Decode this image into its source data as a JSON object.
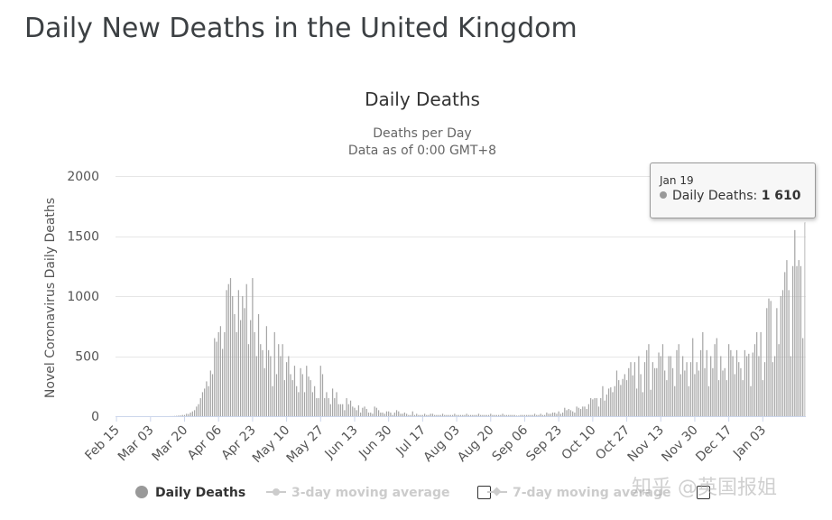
{
  "page": {
    "title": "Daily New Deaths in the United Kingdom"
  },
  "watermark": "知乎 @英国报姐",
  "colors": {
    "bar": "#a6a6a6",
    "grid": "#e6e6e6",
    "axis": "#ccd6eb"
  },
  "tooltip": {
    "date": "Jan 19",
    "series": "Daily Deaths",
    "value": "1 610"
  },
  "legend": {
    "items": [
      {
        "label": "Daily Deaths",
        "active": true
      },
      {
        "label": "3-day moving average",
        "active": false
      },
      {
        "label": "7-day moving average",
        "active": false
      }
    ]
  },
  "chart_data": {
    "type": "bar",
    "title": "Daily Deaths",
    "subtitle_line1": "Deaths per Day",
    "subtitle_line2": "Data as of 0:00 GMT+8",
    "ylabel": "Novel Coronavirus Daily Deaths",
    "xlabel": "",
    "ylim": [
      0,
      2000
    ],
    "yticks": [
      0,
      500,
      1000,
      1500,
      2000
    ],
    "x_start": "Feb 15",
    "x_end": "Jan 19",
    "xtick_labels": [
      "Feb 15",
      "Mar 03",
      "Mar 20",
      "Apr 06",
      "Apr 23",
      "May 10",
      "May 27",
      "Jun 13",
      "Jun 30",
      "Jul 17",
      "Aug 03",
      "Aug 20",
      "Sep 06",
      "Sep 23",
      "Oct 10",
      "Oct 27",
      "Nov 13",
      "Nov 30",
      "Dec 17",
      "Jan 03"
    ],
    "xtick_day_index": [
      0,
      17,
      34,
      51,
      68,
      85,
      102,
      119,
      136,
      153,
      170,
      187,
      204,
      221,
      238,
      255,
      272,
      289,
      306,
      323
    ],
    "series": [
      {
        "name": "Daily Deaths",
        "values": [
          0,
          0,
          0,
          0,
          0,
          0,
          0,
          0,
          0,
          0,
          0,
          0,
          0,
          0,
          0,
          0,
          0,
          0,
          0,
          0,
          0,
          0,
          0,
          0,
          0,
          0,
          0,
          1,
          1,
          2,
          3,
          5,
          6,
          10,
          10,
          20,
          18,
          30,
          40,
          50,
          80,
          100,
          150,
          200,
          230,
          290,
          250,
          380,
          350,
          650,
          620,
          700,
          750,
          560,
          700,
          1050,
          1100,
          1150,
          1000,
          850,
          700,
          1050,
          800,
          1000,
          900,
          1100,
          600,
          800,
          1150,
          700,
          500,
          850,
          600,
          550,
          400,
          750,
          550,
          500,
          250,
          700,
          350,
          600,
          500,
          600,
          300,
          450,
          500,
          350,
          300,
          420,
          250,
          200,
          400,
          350,
          200,
          420,
          330,
          300,
          200,
          250,
          150,
          150,
          420,
          350,
          150,
          200,
          150,
          100,
          230,
          150,
          200,
          100,
          100,
          100,
          50,
          150,
          100,
          130,
          80,
          70,
          50,
          90,
          30,
          70,
          80,
          60,
          30,
          30,
          20,
          80,
          70,
          50,
          30,
          30,
          20,
          40,
          40,
          30,
          10,
          30,
          50,
          40,
          20,
          20,
          30,
          20,
          10,
          10,
          40,
          10,
          20,
          10,
          10,
          10,
          20,
          10,
          10,
          20,
          20,
          10,
          10,
          10,
          10,
          20,
          10,
          10,
          10,
          10,
          10,
          20,
          10,
          10,
          10,
          10,
          10,
          20,
          10,
          10,
          10,
          10,
          10,
          20,
          10,
          10,
          10,
          10,
          10,
          20,
          10,
          10,
          10,
          10,
          10,
          20,
          10,
          10,
          10,
          10,
          10,
          10,
          5,
          5,
          10,
          10,
          10,
          10,
          10,
          10,
          10,
          20,
          10,
          10,
          20,
          10,
          10,
          30,
          20,
          20,
          30,
          30,
          20,
          40,
          20,
          30,
          70,
          50,
          60,
          50,
          40,
          30,
          80,
          70,
          60,
          80,
          80,
          60,
          100,
          150,
          140,
          150,
          150,
          80,
          150,
          250,
          130,
          180,
          230,
          240,
          200,
          250,
          380,
          300,
          260,
          310,
          350,
          300,
          400,
          450,
          340,
          450,
          230,
          500,
          350,
          200,
          450,
          550,
          600,
          220,
          450,
          400,
          400,
          530,
          500,
          600,
          380,
          300,
          500,
          500,
          400,
          250,
          550,
          600,
          350,
          500,
          380,
          450,
          250,
          450,
          650,
          350,
          450,
          380,
          550,
          700,
          400,
          550,
          250,
          500,
          400,
          600,
          650,
          300,
          500,
          380,
          400,
          300,
          600,
          550,
          500,
          350,
          550,
          450,
          400,
          300,
          550,
          500,
          520,
          250,
          530,
          600,
          700,
          500,
          700,
          300,
          450,
          900,
          980,
          960,
          450,
          500,
          900,
          600,
          1000,
          1050,
          1200,
          1300,
          1050,
          500,
          1250,
          1550,
          1250,
          1300,
          1250,
          650,
          1610
        ]
      }
    ]
  }
}
